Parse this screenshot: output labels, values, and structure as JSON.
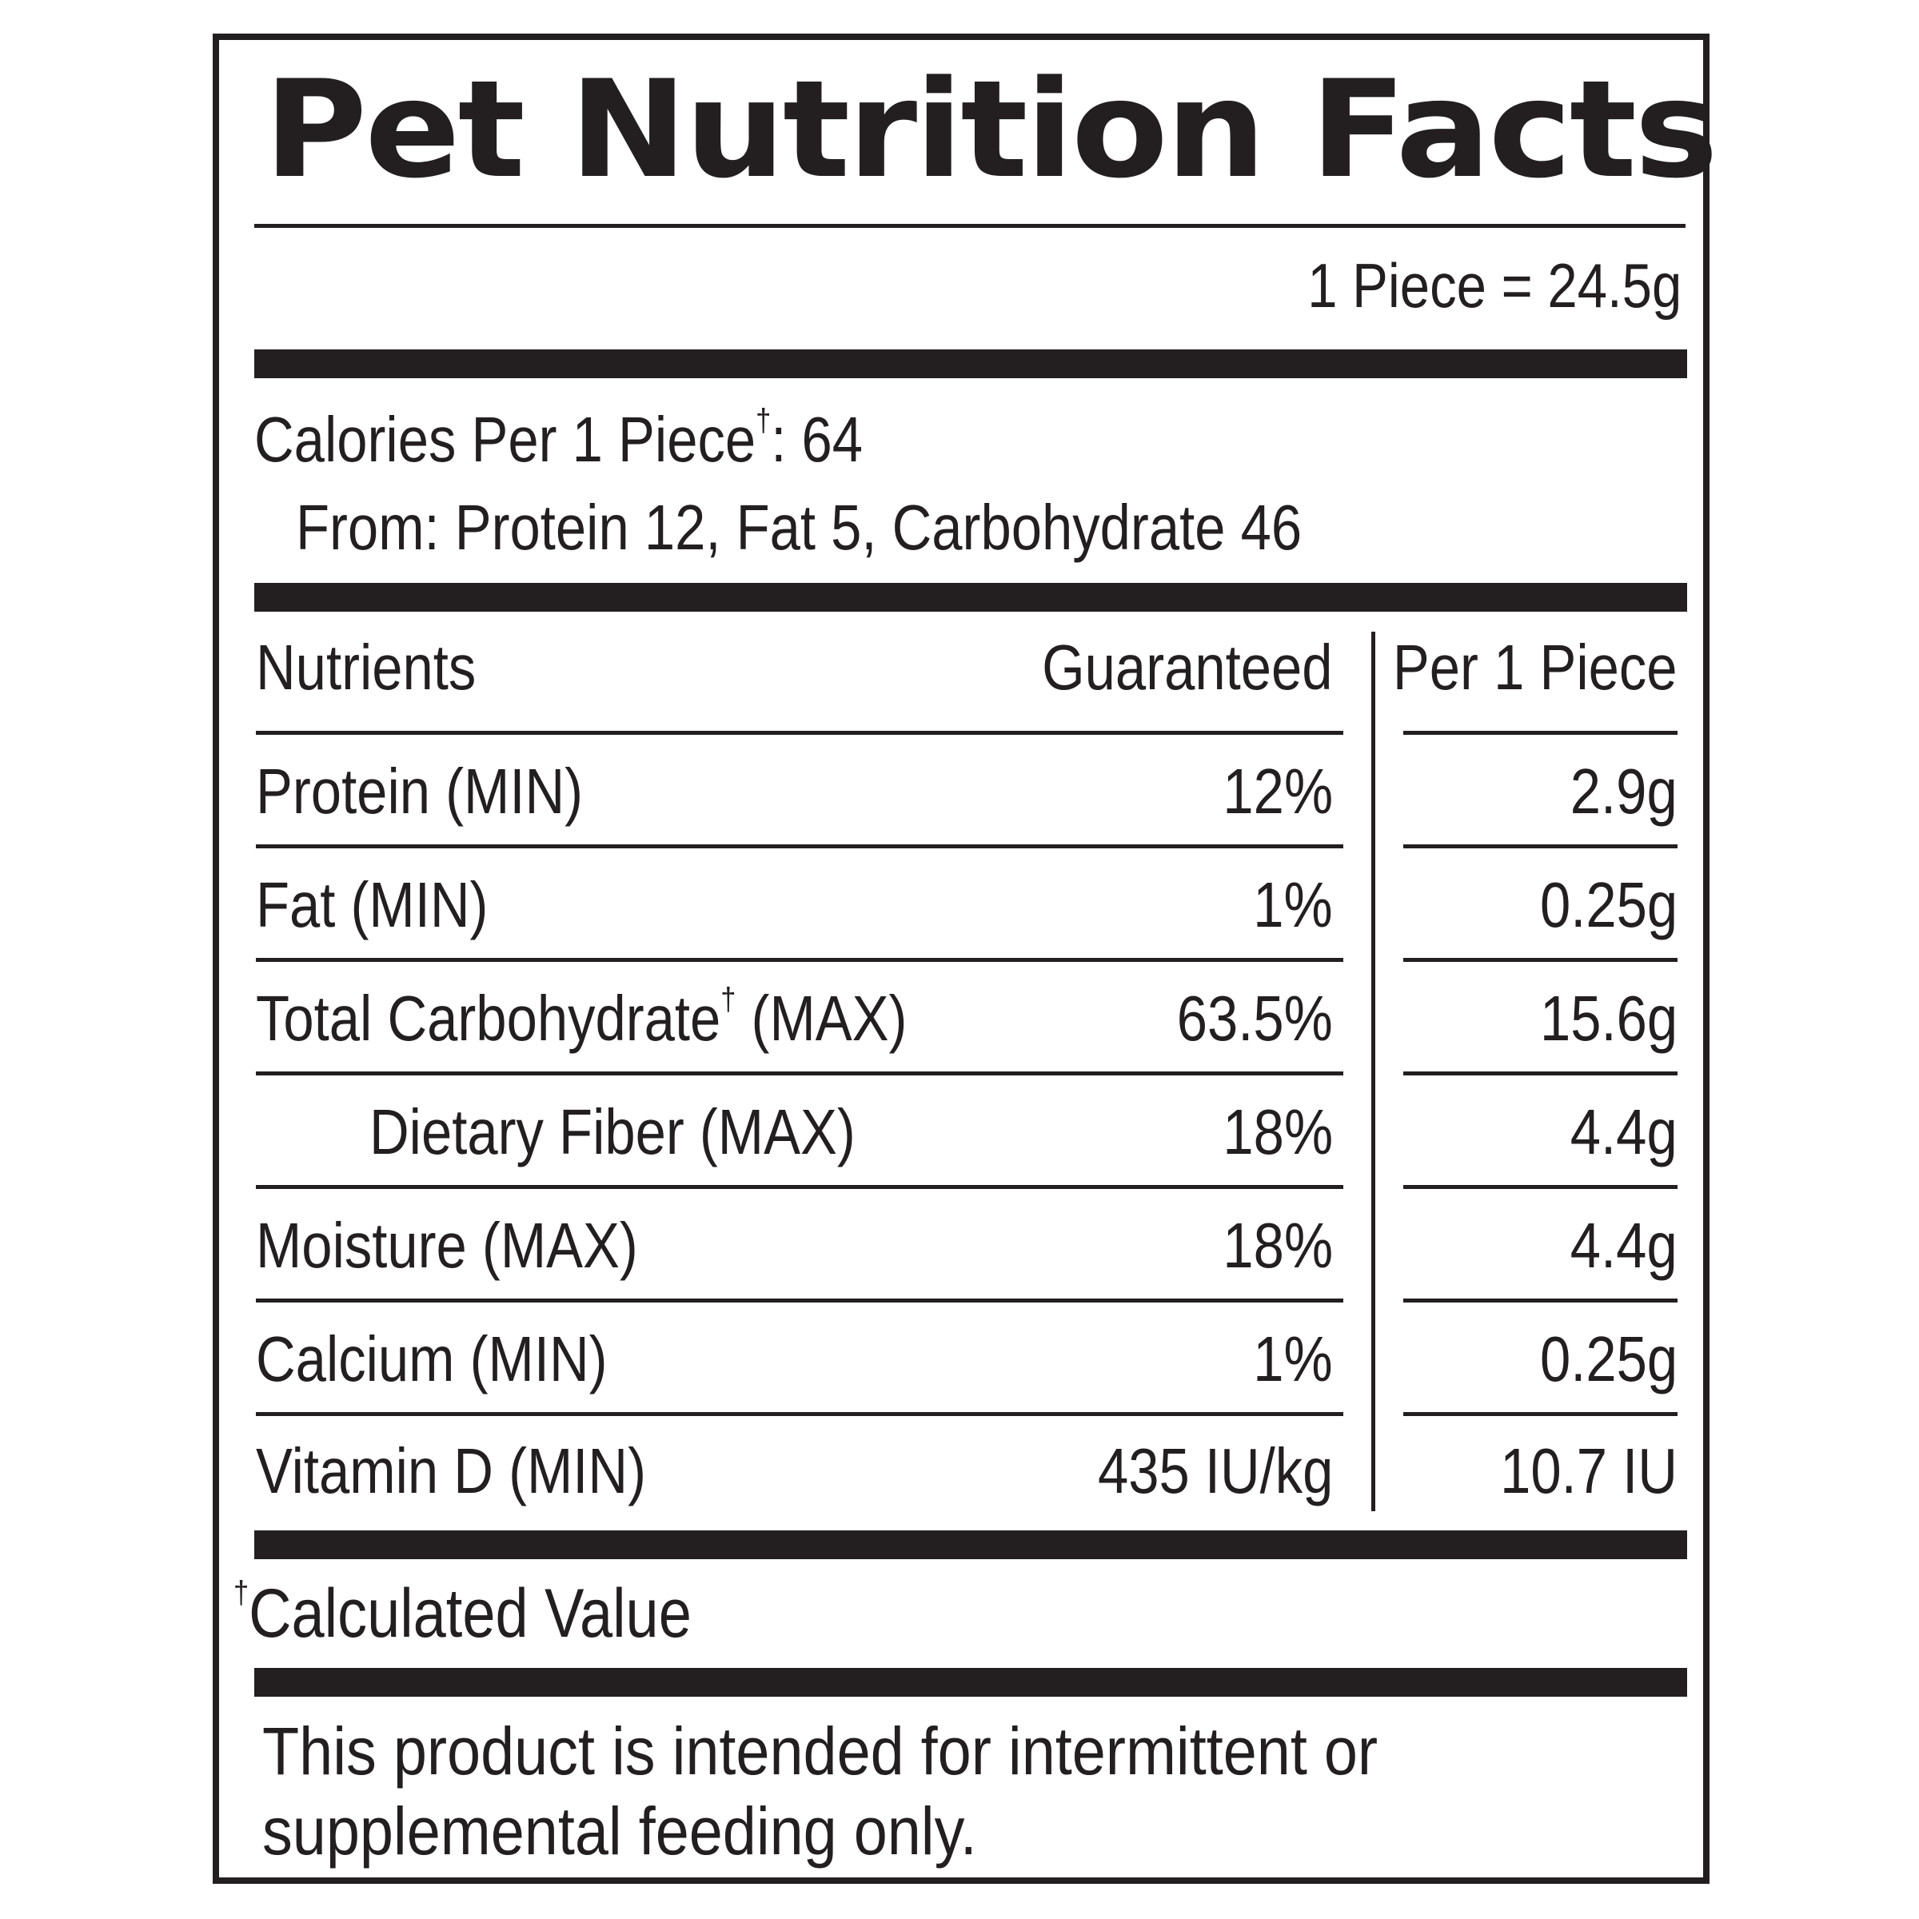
{
  "label": {
    "title": "Pet Nutrition Facts",
    "serving_size": "1 Piece = 24.5g",
    "calories_line": "Calories Per 1 Piece",
    "calories_dagger": "†",
    "calories_value": ": 64",
    "calories_from": "From: Protein 12, Fat 5, Carbohydrate 46",
    "headers": {
      "nutrients": "Nutrients",
      "guaranteed": "Guaranteed",
      "per_piece": "Per 1 Piece"
    },
    "rows": [
      {
        "name": "Protein (MIN)",
        "guaranteed": "12%",
        "per_piece": "2.9g"
      },
      {
        "name": "Fat (MIN)",
        "guaranteed": "1%",
        "per_piece": "0.25g"
      },
      {
        "name_pre": "Total Carbohydrate",
        "name_dagger": "†",
        "name_post": " (MAX)",
        "guaranteed": "63.5%",
        "per_piece": "15.6g"
      },
      {
        "name": "Dietary Fiber (MAX)",
        "guaranteed": "18%",
        "per_piece": "4.4g"
      },
      {
        "name": "Moisture (MAX)",
        "guaranteed": "18%",
        "per_piece": "4.4g"
      },
      {
        "name": "Calcium (MIN)",
        "guaranteed": "1%",
        "per_piece": "0.25g"
      },
      {
        "name": "Vitamin D (MIN)",
        "guaranteed": "435 IU/kg",
        "per_piece": "10.7 IU"
      }
    ],
    "footnote_dagger": "†",
    "footnote_text": "Calculated Value",
    "disclaimer_line1": "This product is intended for intermittent or",
    "disclaimer_line2": "supplemental feeding only."
  }
}
